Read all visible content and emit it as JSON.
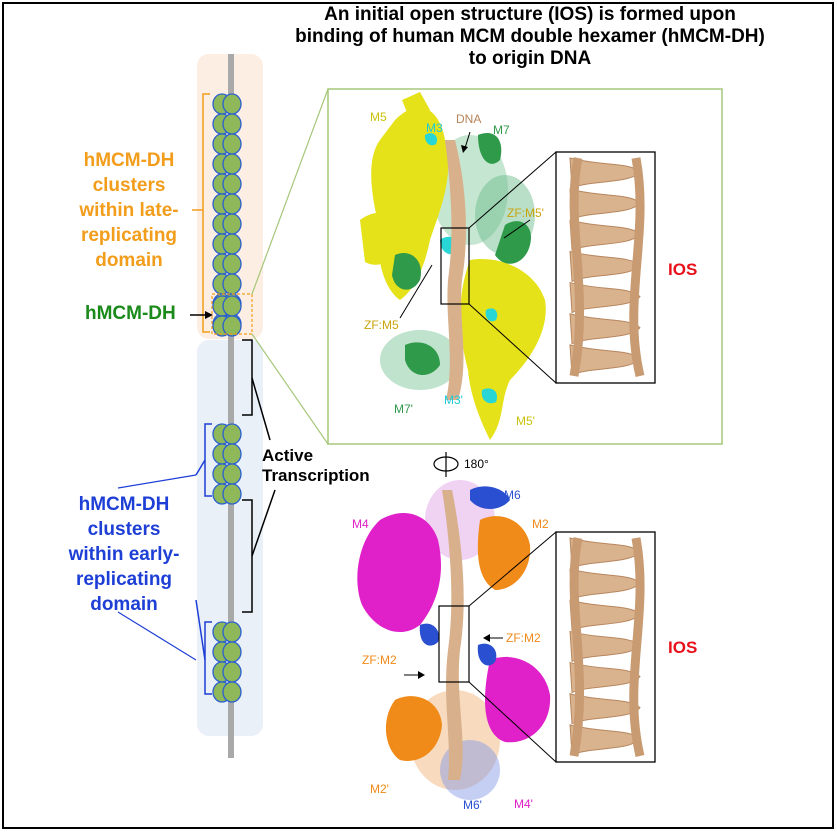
{
  "title_lines": [
    "An initial open structure (IOS) is formed upon",
    "binding of human MCM double hexamer (hMCM-DH)",
    "to origin DNA"
  ],
  "late_domain": {
    "lines": [
      "hMCM-DH",
      "clusters",
      "within late-",
      "replicating",
      "domain"
    ],
    "color": "#f29d1b"
  },
  "early_domain": {
    "lines": [
      "hMCM-DH",
      "clusters",
      "within early-",
      "replicating",
      "domain"
    ],
    "color": "#1e3fd6"
  },
  "hmcm_dh_label": {
    "text": "hMCM-DH",
    "color": "#1a8a1a"
  },
  "active_transcription": [
    "Active",
    "Transcription"
  ],
  "rotation_label": "180°",
  "ios_label": "IOS",
  "top_structure_labels": {
    "m5": "M5",
    "m3": "M3",
    "dna": "DNA",
    "m7": "M7",
    "zf_m5_prime": "ZF:M5'",
    "zf_m5": "ZF:M5",
    "m7_prime": "M7'",
    "m3_prime": "M3'",
    "m5_prime": "M5'"
  },
  "bottom_structure_labels": {
    "m6": "M6",
    "m4": "M4",
    "m2": "M2",
    "zf_m2_right": "ZF:M2",
    "zf_m2_left": "ZF:M2",
    "m2_prime": "M2'",
    "m6_prime": "M6'",
    "m4_prime": "M4'"
  },
  "colors": {
    "dna": "#d8b08c",
    "m5": "#e6e21a",
    "m7": "#2f9a4a",
    "m3": "#29d6d6",
    "m4": "#e020c8",
    "m2": "#f08a18",
    "m6": "#2a4fd0",
    "late_bg": "#fdeee3",
    "early_bg": "#eaf0f8",
    "frame_green": "#a6c77a"
  }
}
